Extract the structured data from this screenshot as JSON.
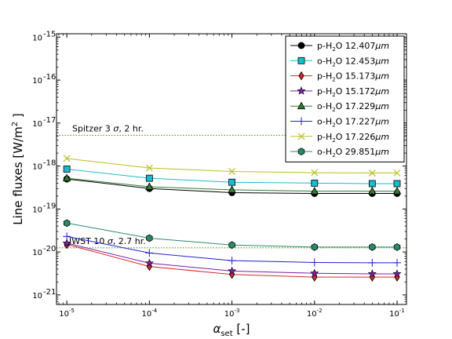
{
  "chart_data": {
    "type": "line",
    "xscale": "log",
    "yscale": "log",
    "xlim": [
      7.5e-06,
      0.13
    ],
    "ylim": [
      6e-22,
      1.2e-15
    ],
    "xticks": [
      1e-05,
      0.0001,
      0.001,
      0.01,
      0.1
    ],
    "xtick_labels": [
      {
        "base": "10",
        "exp": "-5"
      },
      {
        "base": "10",
        "exp": "-4"
      },
      {
        "base": "10",
        "exp": "-3"
      },
      {
        "base": "10",
        "exp": "-2"
      },
      {
        "base": "10",
        "exp": "-1"
      }
    ],
    "yticks": [
      1e-21,
      1e-20,
      1e-19,
      1e-18,
      1e-17,
      1e-16,
      1e-15
    ],
    "ytick_labels": [
      {
        "base": "10",
        "exp": "-21"
      },
      {
        "base": "10",
        "exp": "-20"
      },
      {
        "base": "10",
        "exp": "-19"
      },
      {
        "base": "10",
        "exp": "-18"
      },
      {
        "base": "10",
        "exp": "-17"
      },
      {
        "base": "10",
        "exp": "-16"
      },
      {
        "base": "10",
        "exp": "-15"
      }
    ],
    "xlabel": {
      "main": "α",
      "sub": "set",
      "suffix": " [-]"
    },
    "ylabel": {
      "main": "Line fluxes [W/m",
      "sup": "2",
      "suffix": " ]"
    },
    "x": [
      1e-05,
      0.0001,
      0.001,
      0.01,
      0.05,
      0.1
    ],
    "series": [
      {
        "name_a": "p-H",
        "name_b": "O 12.407",
        "name_c": "μm",
        "color": "#000000",
        "marker": "circle",
        "values": [
          5e-19,
          3e-19,
          2.4e-19,
          2.3e-19,
          2.3e-19,
          2.3e-19
        ]
      },
      {
        "name_a": "o-H",
        "name_b": "O 12.453",
        "name_c": "μm",
        "color": "#17becf",
        "marker": "square",
        "values": [
          8.5e-19,
          5.2e-19,
          4.2e-19,
          4e-19,
          3.9e-19,
          3.9e-19
        ]
      },
      {
        "name_a": "p-H",
        "name_b": "O 15.173",
        "name_c": "μm",
        "color": "#d62728",
        "marker": "diamond",
        "values": [
          1.5e-20,
          4.6e-21,
          3e-21,
          2.6e-21,
          2.6e-21,
          2.6e-21
        ]
      },
      {
        "name_a": "p-H",
        "name_b": "O 15.172",
        "name_c": "μm",
        "color": "#7b1fa2",
        "marker": "star",
        "values": [
          1.6e-20,
          5.5e-21,
          3.6e-21,
          3.2e-21,
          3.1e-21,
          3.1e-21
        ]
      },
      {
        "name_a": "o-H",
        "name_b": "O 17.229",
        "name_c": "μm",
        "color": "#2e7d32",
        "marker": "triangle",
        "values": [
          5.2e-19,
          3.3e-19,
          2.8e-19,
          2.6e-19,
          2.6e-19,
          2.6e-19
        ]
      },
      {
        "name_a": "o-H",
        "name_b": "O 17.227",
        "name_c": "μm",
        "color": "#1f1fd6",
        "marker": "plus",
        "values": [
          2.3e-20,
          9.5e-21,
          6.3e-21,
          5.7e-21,
          5.6e-21,
          5.6e-21
        ]
      },
      {
        "name_a": "p-H",
        "name_b": "O 17.226",
        "name_c": "μm",
        "color": "#bcbd22",
        "marker": "x",
        "values": [
          1.5e-18,
          9e-19,
          7.5e-19,
          7e-19,
          6.9e-19,
          6.9e-19
        ]
      },
      {
        "name_a": "o-H",
        "name_b": "O 29.851",
        "name_c": "μm",
        "color": "#2a8a6b",
        "marker": "hexagon",
        "values": [
          4.7e-20,
          2.1e-20,
          1.45e-20,
          1.3e-20,
          1.3e-20,
          1.3e-20
        ]
      }
    ],
    "reference_lines": [
      {
        "label_pre": "Spitzer 3 ",
        "label_sym": "σ",
        "label_post": ", 2 hr.",
        "value": 5.2e-18,
        "color": "#4c9a1a"
      },
      {
        "label_pre": "JWST 10 ",
        "label_sym": "σ",
        "label_post": ", 2.7 hr.",
        "value": 1.25e-20,
        "color": "#4c9a1a"
      }
    ],
    "legend_position": "top-right",
    "grid": false
  }
}
